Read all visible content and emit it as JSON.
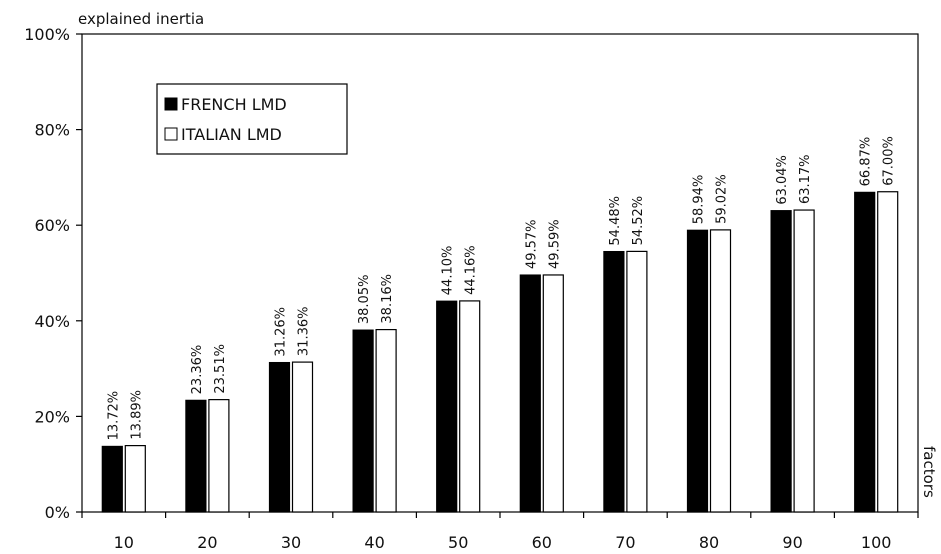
{
  "chart_data": {
    "type": "bar",
    "ylabel": "explained inertia",
    "xlabel": "factors",
    "categories": [
      "10",
      "20",
      "30",
      "40",
      "50",
      "60",
      "70",
      "80",
      "90",
      "100"
    ],
    "series": [
      {
        "name": "FRENCH LMD",
        "color": "#000000",
        "values": [
          13.72,
          23.36,
          31.26,
          38.05,
          44.1,
          49.57,
          54.48,
          58.94,
          63.04,
          66.87
        ],
        "labels": [
          "13.72%",
          "23.36%",
          "31.26%",
          "38.05%",
          "44.10%",
          "49.57%",
          "54.48%",
          "58.94%",
          "63.04%",
          "66.87%"
        ]
      },
      {
        "name": "ITALIAN LMD",
        "color": "#ffffff",
        "values": [
          13.89,
          23.51,
          31.36,
          38.16,
          44.16,
          49.59,
          54.52,
          59.02,
          63.17,
          67.0
        ],
        "labels": [
          "13.89%",
          "23.51%",
          "31.36%",
          "38.16%",
          "44.16%",
          "49.59%",
          "54.52%",
          "59.02%",
          "63.17%",
          "67.00%"
        ]
      }
    ],
    "ylim": [
      0,
      100
    ],
    "yticks": [
      "0%",
      "20%",
      "40%",
      "60%",
      "80%",
      "100%"
    ],
    "ytick_values": [
      0,
      20,
      40,
      60,
      80,
      100
    ],
    "legend_position": "top-left",
    "grid": false
  }
}
